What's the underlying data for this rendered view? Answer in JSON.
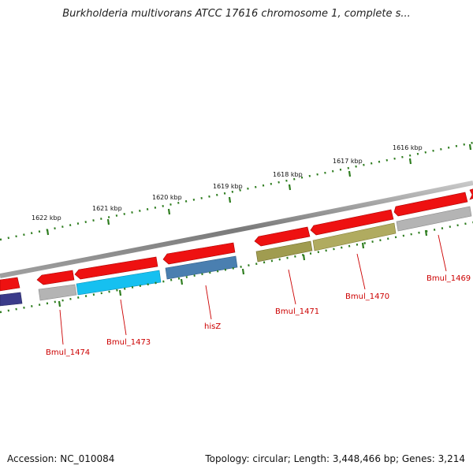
{
  "title": "Burkholderia multivorans ATCC 17616 chromosome 1, complete s...",
  "footer": {
    "accession": "Accession: NC_010084",
    "topology": "Topology: circular; Length: 3,448,466 bp; Genes: 3,214"
  },
  "scale_labels": [
    "1616 kbp",
    "1617 kbp",
    "1618 kbp",
    "1619 kbp",
    "1620 kbp",
    "1621 kbp",
    "1622 kbp"
  ],
  "gene_labels": [
    "Bmul_1469",
    "Bmul_1470",
    "Bmul_1471",
    "hisZ",
    "Bmul_1473",
    "Bmul_1474"
  ],
  "colors": {
    "backbone": "#7a7a7a",
    "cds": "#ee1111",
    "ruler": "#2e7d1f",
    "label": "#cc0000",
    "gene_bmul_1469": "#b4b4b4",
    "gene_bmul_1470": "#b0ab60",
    "gene_bmul_1471": "#a09c50",
    "gene_hisZ": "#4a7fb0",
    "gene_bmul_1473": "#16c0f0",
    "gene_bmul_1474": "#b4b4b4",
    "gene_edge": "#3b3b8a"
  }
}
